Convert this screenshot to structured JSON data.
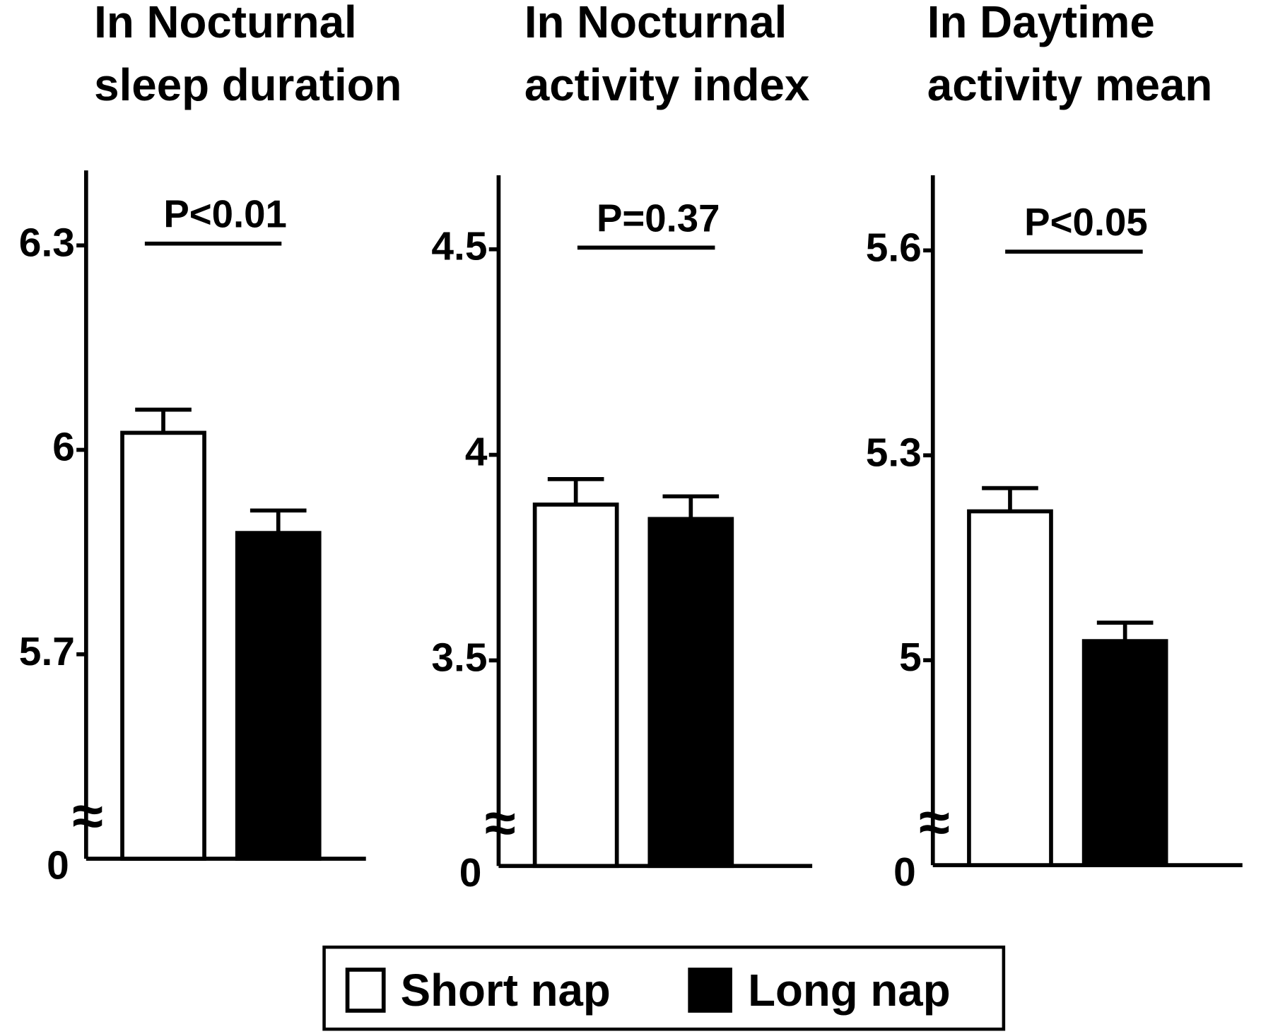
{
  "chart_data": [
    {
      "type": "bar",
      "title_lines": [
        "In Nocturnal",
        "sleep duration"
      ],
      "annotation": "P<0.01",
      "series": [
        {
          "name": "Short nap",
          "color": "#ffffff",
          "values": [
            6.025
          ],
          "errors": [
            0.034
          ]
        },
        {
          "name": "Long nap",
          "color": "#000000",
          "values": [
            5.878
          ],
          "errors": [
            0.033
          ]
        }
      ],
      "ylim": [
        5.4,
        6.41
      ],
      "yticks": [
        5.7,
        6.0,
        6.3
      ],
      "axis_break_tick": 0
    },
    {
      "type": "bar",
      "title_lines": [
        "In Nocturnal",
        "activity index"
      ],
      "annotation": "P=0.37",
      "series": [
        {
          "name": "Short nap",
          "color": "#ffffff",
          "values": [
            3.879
          ],
          "errors": [
            0.062
          ]
        },
        {
          "name": "Long nap",
          "color": "#000000",
          "values": [
            3.844
          ],
          "errors": [
            0.055
          ]
        }
      ],
      "ylim": [
        3.0,
        4.68
      ],
      "yticks": [
        3.5,
        4.0,
        4.5
      ],
      "axis_break_tick": 0
    },
    {
      "type": "bar",
      "title_lines": [
        "In Daytime",
        "activity mean"
      ],
      "annotation": "P<0.05",
      "series": [
        {
          "name": "Short nap",
          "color": "#ffffff",
          "values": [
            5.218
          ],
          "errors": [
            0.034
          ]
        },
        {
          "name": "Long nap",
          "color": "#000000",
          "values": [
            5.028
          ],
          "errors": [
            0.027
          ]
        }
      ],
      "ylim": [
        4.7,
        5.71
      ],
      "yticks": [
        5.0,
        5.3,
        5.6
      ],
      "axis_break_tick": 0
    }
  ]
}
